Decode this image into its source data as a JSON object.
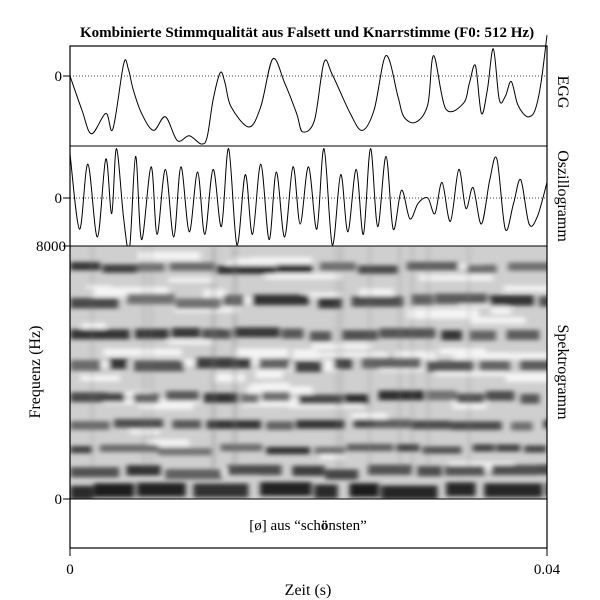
{
  "chart_data": {
    "type": "line",
    "title": "Kombinierte Stimmqualität aus Falsett und Knarrstimme (F0: 512 Hz)",
    "x_axis": {
      "label": "Zeit (s)",
      "range": [
        0,
        0.04
      ],
      "ticks": [
        "0",
        "0.04"
      ]
    },
    "panels": {
      "egg": {
        "label": "EGG",
        "tick_label": "0",
        "reference_line": "dotted at zero",
        "series": {
          "name": "EGG",
          "x": [
            0,
            0.001,
            0.0018,
            0.003,
            0.0036,
            0.0045,
            0.0049,
            0.0053,
            0.006,
            0.007,
            0.008,
            0.009,
            0.01,
            0.011,
            0.0115,
            0.012,
            0.0126,
            0.013,
            0.0135,
            0.015,
            0.016,
            0.017,
            0.018,
            0.019,
            0.0195,
            0.0205,
            0.0213,
            0.022,
            0.0235,
            0.0245,
            0.0255,
            0.0265,
            0.0275,
            0.028,
            0.029,
            0.03,
            0.0305,
            0.0315,
            0.033,
            0.0335,
            0.034,
            0.0345,
            0.035,
            0.0355,
            0.036,
            0.0365,
            0.037,
            0.0375,
            0.038,
            0.0385,
            0.039,
            0.0395,
            0.04
          ],
          "y": [
            0.0,
            -0.5,
            -0.85,
            -0.55,
            -0.78,
            0.18,
            0.1,
            -0.2,
            -0.55,
            -0.8,
            -0.6,
            -0.95,
            -0.88,
            -1.0,
            -0.9,
            -0.35,
            0.05,
            -0.1,
            -0.45,
            -0.75,
            -0.45,
            0.25,
            -0.1,
            -0.55,
            -0.82,
            -0.65,
            0.2,
            0.02,
            -0.55,
            -0.8,
            -0.5,
            0.3,
            -0.3,
            -0.6,
            -0.68,
            -0.42,
            0.3,
            -0.48,
            -0.4,
            -0.1,
            0.15,
            -0.55,
            -0.2,
            0.4,
            -0.35,
            -0.3,
            -0.08,
            -0.4,
            -0.55,
            -0.6,
            -0.5,
            -0.1,
            0.6
          ]
        }
      },
      "oscillogram": {
        "label": "Oszillogramm",
        "tick_label": "0",
        "reference_line": "dotted at zero",
        "series": {
          "name": "Oszillogramm",
          "x": [
            0,
            0.0008,
            0.0015,
            0.0023,
            0.003,
            0.0035,
            0.0039,
            0.0045,
            0.005,
            0.0055,
            0.006,
            0.0068,
            0.0073,
            0.008,
            0.0087,
            0.0093,
            0.01,
            0.0107,
            0.0113,
            0.012,
            0.0127,
            0.0133,
            0.014,
            0.0147,
            0.0153,
            0.016,
            0.0167,
            0.0173,
            0.018,
            0.0187,
            0.0193,
            0.02,
            0.0207,
            0.0213,
            0.022,
            0.0227,
            0.0233,
            0.024,
            0.0246,
            0.0252,
            0.0258,
            0.0265,
            0.0271,
            0.0278,
            0.0285,
            0.0292,
            0.03,
            0.0306,
            0.0312,
            0.0319,
            0.0326,
            0.0332,
            0.0338,
            0.0345,
            0.0352,
            0.0358,
            0.0365,
            0.0372,
            0.0378,
            0.0385,
            0.0392,
            0.04
          ],
          "y": [
            0.85,
            -0.6,
            0.65,
            -0.75,
            0.75,
            -0.3,
            0.95,
            -0.4,
            -0.95,
            0.8,
            -0.8,
            0.6,
            -0.7,
            0.55,
            -0.75,
            0.6,
            -0.65,
            0.5,
            -0.7,
            0.55,
            -0.55,
            0.95,
            -0.9,
            0.45,
            -0.7,
            0.65,
            -0.8,
            0.5,
            -0.75,
            0.6,
            -0.5,
            0.6,
            -0.6,
            0.95,
            -0.9,
            0.45,
            -0.65,
            0.55,
            -0.7,
            0.95,
            -0.55,
            0.8,
            -0.6,
            0.15,
            -0.4,
            -0.1,
            0.0,
            -0.3,
            0.3,
            -0.45,
            0.55,
            -0.2,
            0.2,
            -0.5,
            0.35,
            0.75,
            -0.6,
            -0.1,
            0.35,
            -0.5,
            -0.35,
            0.3
          ]
        }
      },
      "spectrogram": {
        "label": "Spektrogramm",
        "y_label": "Frequenz (Hz)",
        "y_range": [
          0,
          8000
        ],
        "y_ticks": [
          "0",
          "8000"
        ],
        "formant_bands_hz": [
          250,
          850,
          1550,
          2350,
          3200,
          4250,
          5200,
          6250,
          7300
        ],
        "caption_parts": [
          "[ø] aus “sch",
          "ö",
          "nsten”"
        ]
      }
    }
  }
}
